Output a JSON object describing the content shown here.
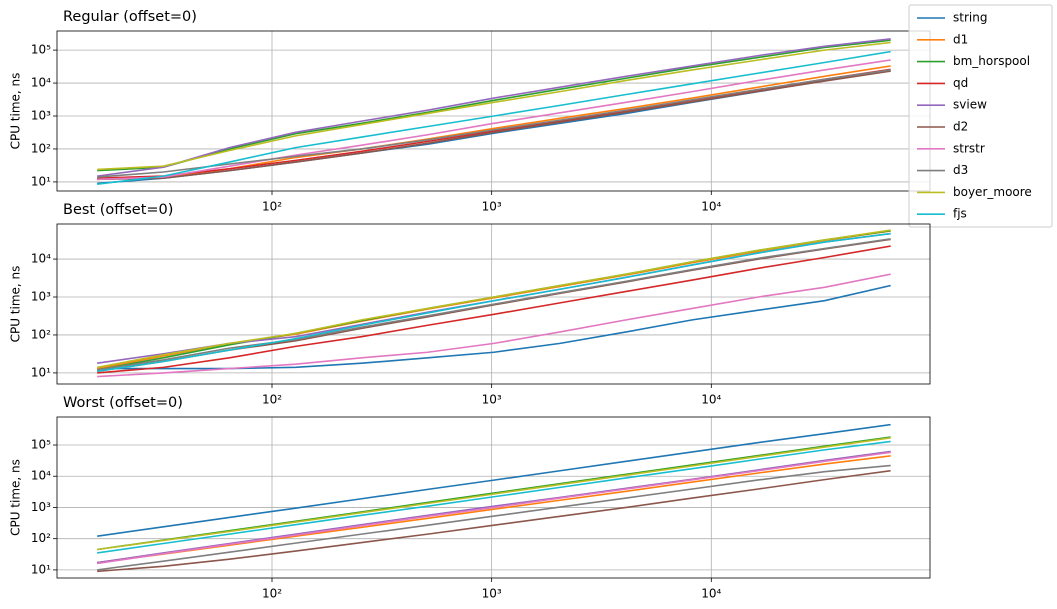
{
  "chart_data": [
    {
      "type": "line",
      "title": "Regular (offset=0)",
      "ylabel": "CPU time, ns",
      "xscale": "log",
      "yscale": "log",
      "grid": true,
      "legend": "outside upper right",
      "xlim": [
        10.5,
        99000
      ],
      "ylim": [
        5.3,
        380000
      ],
      "xticks": [
        {
          "value": 100,
          "label": "10²"
        },
        {
          "value": 1000,
          "label": "10³"
        },
        {
          "value": 10000,
          "label": "10⁴"
        }
      ],
      "yticks": [
        {
          "value": 10,
          "label": "10¹"
        },
        {
          "value": 100,
          "label": "10²"
        },
        {
          "value": 1000,
          "label": "10³"
        },
        {
          "value": 10000,
          "label": "10⁴"
        },
        {
          "value": 100000,
          "label": "10⁵"
        }
      ],
      "x": [
        16,
        32,
        64,
        128,
        256,
        512,
        1024,
        2048,
        4096,
        8192,
        16384,
        32768,
        65536
      ],
      "series": [
        {
          "name": "string",
          "color": "#1f77b4",
          "values": [
            9,
            13,
            22,
            40,
            75,
            140,
            300,
            600,
            1200,
            2600,
            5500,
            12000,
            24000
          ]
        },
        {
          "name": "d1",
          "color": "#ff7f0e",
          "values": [
            12,
            14,
            25,
            55,
            100,
            200,
            420,
            850,
            1700,
            3500,
            7500,
            16000,
            33000
          ]
        },
        {
          "name": "bm_horspool",
          "color": "#2ca02c",
          "values": [
            22,
            28,
            100,
            290,
            600,
            1300,
            3000,
            6500,
            14000,
            30000,
            60000,
            120000,
            200000
          ]
        },
        {
          "name": "qd",
          "color": "#d62728",
          "values": [
            13,
            15,
            25,
            45,
            85,
            170,
            350,
            700,
            1400,
            3000,
            6200,
            13000,
            26000
          ]
        },
        {
          "name": "sview",
          "color": "#9467bd",
          "values": [
            15,
            28,
            110,
            320,
            700,
            1500,
            3500,
            7500,
            16000,
            33000,
            68000,
            130000,
            220000
          ]
        },
        {
          "name": "d2",
          "color": "#8c564b",
          "values": [
            12,
            13,
            22,
            40,
            75,
            150,
            320,
            650,
            1300,
            2700,
            5600,
            11500,
            23000
          ]
        },
        {
          "name": "strstr",
          "color": "#e377c2",
          "values": [
            12,
            14,
            30,
            65,
            130,
            270,
            600,
            1250,
            2600,
            5500,
            12000,
            25000,
            50000
          ]
        },
        {
          "name": "d3",
          "color": "#7f7f7f",
          "values": [
            14,
            20,
            35,
            60,
            100,
            190,
            380,
            750,
            1500,
            3100,
            6400,
            13000,
            25000
          ]
        },
        {
          "name": "boyer_moore",
          "color": "#bcbd22",
          "values": [
            24,
            30,
            90,
            250,
            550,
            1200,
            2600,
            5500,
            12000,
            25000,
            50000,
            100000,
            170000
          ]
        },
        {
          "name": "fjs",
          "color": "#17becf",
          "values": [
            8.5,
            15,
            40,
            110,
            230,
            480,
            1000,
            2100,
            4500,
            9500,
            20000,
            42000,
            90000
          ]
        }
      ]
    },
    {
      "type": "line",
      "title": "Best (offset=0)",
      "ylabel": "CPU time, ns",
      "xscale": "log",
      "yscale": "log",
      "grid": true,
      "xlim": [
        10.5,
        99000
      ],
      "ylim": [
        5.1,
        84000
      ],
      "xticks": [
        {
          "value": 100,
          "label": "10²"
        },
        {
          "value": 1000,
          "label": "10³"
        },
        {
          "value": 10000,
          "label": "10⁴"
        }
      ],
      "yticks": [
        {
          "value": 10,
          "label": "10¹"
        },
        {
          "value": 100,
          "label": "10²"
        },
        {
          "value": 1000,
          "label": "10³"
        },
        {
          "value": 10000,
          "label": "10⁴"
        }
      ],
      "x": [
        16,
        32,
        64,
        128,
        256,
        512,
        1024,
        2048,
        4096,
        8192,
        16384,
        32768,
        65536
      ],
      "series": [
        {
          "color": "#1f77b4",
          "values": [
            13,
            13,
            13,
            14,
            18,
            25,
            35,
            60,
            120,
            250,
            450,
            800,
            2000
          ]
        },
        {
          "color": "#ff7f0e",
          "values": [
            13,
            28,
            60,
            105,
            230,
            480,
            950,
            1900,
            3800,
            8000,
            16000,
            31000,
            55000
          ]
        },
        {
          "color": "#2ca02c",
          "values": [
            12,
            25,
            55,
            110,
            240,
            500,
            1000,
            2000,
            4000,
            8500,
            17000,
            32000,
            56000
          ]
        },
        {
          "color": "#d62728",
          "values": [
            10,
            14,
            25,
            50,
            90,
            180,
            350,
            700,
            1400,
            2800,
            5700,
            11000,
            22000
          ]
        },
        {
          "color": "#9467bd",
          "values": [
            18,
            32,
            60,
            90,
            190,
            400,
            800,
            1600,
            3300,
            7000,
            14500,
            28000,
            47000
          ]
        },
        {
          "color": "#8c564b",
          "values": [
            11,
            20,
            40,
            70,
            150,
            300,
            620,
            1250,
            2500,
            5100,
            10000,
            18500,
            33000
          ]
        },
        {
          "color": "#e377c2",
          "values": [
            8,
            10,
            13,
            17,
            25,
            35,
            60,
            120,
            250,
            500,
            1000,
            1800,
            4000
          ]
        },
        {
          "color": "#7f7f7f",
          "values": [
            12,
            22,
            45,
            75,
            160,
            320,
            650,
            1300,
            2600,
            5300,
            10500,
            19000,
            34000
          ]
        },
        {
          "color": "#bcbd22",
          "values": [
            14,
            30,
            60,
            110,
            250,
            500,
            1000,
            2000,
            4000,
            8500,
            17000,
            32000,
            58000
          ]
        },
        {
          "color": "#17becf",
          "values": [
            11,
            20,
            40,
            80,
            180,
            380,
            800,
            1600,
            3300,
            7000,
            14500,
            28000,
            47000
          ]
        }
      ]
    },
    {
      "type": "line",
      "title": "Worst (offset=0)",
      "ylabel": "CPU time, ns",
      "xscale": "log",
      "yscale": "log",
      "grid": true,
      "xlim": [
        10.5,
        99000
      ],
      "ylim": [
        5.5,
        790000
      ],
      "xticks": [
        {
          "value": 100,
          "label": "10²"
        },
        {
          "value": 1000,
          "label": "10³"
        },
        {
          "value": 10000,
          "label": "10⁴"
        }
      ],
      "yticks": [
        {
          "value": 10,
          "label": "10¹"
        },
        {
          "value": 100,
          "label": "10²"
        },
        {
          "value": 1000,
          "label": "10³"
        },
        {
          "value": 10000,
          "label": "10⁴"
        },
        {
          "value": 100000,
          "label": "10⁵"
        }
      ],
      "x": [
        16,
        32,
        64,
        128,
        256,
        512,
        1024,
        2048,
        4096,
        8192,
        16384,
        32768,
        65536
      ],
      "series": [
        {
          "color": "#1f77b4",
          "values": [
            120,
            240,
            480,
            950,
            1900,
            3800,
            7500,
            15000,
            30000,
            60000,
            120000,
            230000,
            450000
          ]
        },
        {
          "color": "#ff7f0e",
          "values": [
            17,
            32,
            62,
            120,
            230,
            450,
            880,
            1700,
            3300,
            6500,
            12700,
            24500,
            45000
          ]
        },
        {
          "color": "#2ca02c",
          "values": [
            45,
            90,
            180,
            360,
            720,
            1450,
            2900,
            5800,
            11500,
            23000,
            46000,
            92000,
            180000
          ]
        },
        {
          "color": "#d62728",
          "values": [
            17,
            34,
            68,
            135,
            270,
            540,
            1050,
            2050,
            4000,
            7900,
            15500,
            31000,
            60000
          ]
        },
        {
          "color": "#9467bd",
          "values": [
            17,
            35,
            70,
            140,
            280,
            560,
            1100,
            2100,
            4100,
            8000,
            16000,
            32000,
            62000
          ]
        },
        {
          "color": "#8c564b",
          "values": [
            9,
            13,
            22,
            40,
            75,
            140,
            270,
            520,
            1000,
            2000,
            3900,
            7800,
            15000
          ]
        },
        {
          "color": "#e377c2",
          "values": [
            16,
            33,
            66,
            130,
            260,
            520,
            1000,
            2000,
            3900,
            7700,
            15000,
            30000,
            58000
          ]
        },
        {
          "color": "#7f7f7f",
          "values": [
            10,
            19,
            37,
            72,
            140,
            270,
            530,
            1030,
            2000,
            3900,
            7600,
            14000,
            22000
          ]
        },
        {
          "color": "#bcbd22",
          "values": [
            45,
            88,
            170,
            340,
            680,
            1350,
            2700,
            5400,
            10800,
            21500,
            43000,
            86000,
            170000
          ]
        },
        {
          "color": "#17becf",
          "values": [
            35,
            70,
            140,
            280,
            560,
            1100,
            2200,
            4400,
            8800,
            17500,
            35000,
            70000,
            130000
          ]
        }
      ]
    }
  ]
}
